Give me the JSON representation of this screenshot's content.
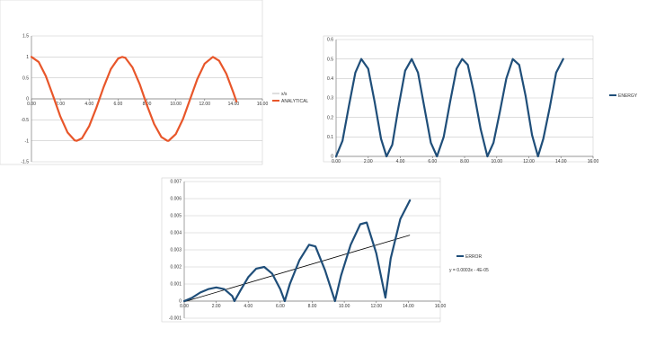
{
  "chart_data": [
    {
      "id": "chart-1",
      "type": "line",
      "title": "",
      "xlabel": "",
      "ylabel": "",
      "xlim": [
        0,
        16
      ],
      "ylim": [
        -1.5,
        1.5
      ],
      "x_ticks": [
        0,
        2,
        4,
        6,
        8,
        10,
        12,
        14,
        16
      ],
      "x_tick_labels": [
        "0.00",
        "2.00",
        "4.00",
        "6.00",
        "8.00",
        "10.00",
        "12.00",
        "14.00",
        "16.00"
      ],
      "y_ticks": [
        -1.5,
        -1,
        -0.5,
        0,
        0.5,
        1,
        1.5
      ],
      "y_tick_labels": [
        "-1.5",
        "-1",
        "-0.5",
        "0",
        "0.5",
        "1",
        "1.5"
      ],
      "grid": "horizontal",
      "legend": "right",
      "series": [
        {
          "name": "x/s",
          "color": "#bdbdbd",
          "x": [
            0,
            0.5,
            1,
            1.5,
            2,
            2.5,
            3,
            3.14,
            3.5,
            4,
            4.5,
            5,
            5.5,
            6,
            6.28,
            6.5,
            7,
            7.5,
            8,
            8.5,
            9,
            9.42,
            9.5,
            10,
            10.5,
            11,
            11.5,
            12,
            12.57,
            13,
            13.5,
            14,
            14.2
          ],
          "y": [
            1,
            0.88,
            0.54,
            0.07,
            -0.42,
            -0.8,
            -0.99,
            -1,
            -0.94,
            -0.65,
            -0.21,
            0.28,
            0.71,
            0.96,
            1,
            0.98,
            0.75,
            0.35,
            -0.15,
            -0.6,
            -0.91,
            -1,
            -1,
            -0.84,
            -0.48,
            0.0,
            0.48,
            0.84,
            1,
            0.91,
            0.6,
            0.14,
            -0.06
          ]
        },
        {
          "name": "ANALYTICAL",
          "color": "#e8562a",
          "x": [
            0,
            0.5,
            1,
            1.5,
            2,
            2.5,
            3,
            3.14,
            3.5,
            4,
            4.5,
            5,
            5.5,
            6,
            6.28,
            6.5,
            7,
            7.5,
            8,
            8.5,
            9,
            9.42,
            9.5,
            10,
            10.5,
            11,
            11.5,
            12,
            12.57,
            13,
            13.5,
            14,
            14.2
          ],
          "y": [
            1,
            0.88,
            0.54,
            0.07,
            -0.42,
            -0.8,
            -0.99,
            -1,
            -0.94,
            -0.65,
            -0.21,
            0.28,
            0.71,
            0.96,
            1,
            0.98,
            0.75,
            0.35,
            -0.15,
            -0.6,
            -0.91,
            -1,
            -1,
            -0.84,
            -0.48,
            0.0,
            0.48,
            0.84,
            1,
            0.91,
            0.6,
            0.14,
            -0.06
          ]
        }
      ]
    },
    {
      "id": "chart-2",
      "type": "line",
      "title": "",
      "xlabel": "",
      "ylabel": "",
      "xlim": [
        0,
        16
      ],
      "ylim": [
        0,
        0.6
      ],
      "x_ticks": [
        0,
        2,
        4,
        6,
        8,
        10,
        12,
        14,
        16
      ],
      "x_tick_labels": [
        "0.00",
        "2.00",
        "4.00",
        "6.00",
        "8.00",
        "10.00",
        "12.00",
        "14.00",
        "16.00"
      ],
      "y_ticks": [
        0,
        0.1,
        0.2,
        0.3,
        0.4,
        0.5,
        0.6
      ],
      "y_tick_labels": [
        "0",
        "0.1",
        "0.2",
        "0.3",
        "0.4",
        "0.5",
        "0.6"
      ],
      "grid": "horizontal",
      "legend": "right",
      "series": [
        {
          "name": "ENERGY",
          "color": "#1f4e79",
          "x": [
            0,
            0.4,
            0.8,
            1.2,
            1.57,
            2.0,
            2.4,
            2.8,
            3.14,
            3.5,
            3.9,
            4.3,
            4.71,
            5.1,
            5.5,
            5.9,
            6.28,
            6.7,
            7.1,
            7.5,
            7.85,
            8.2,
            8.6,
            9.0,
            9.42,
            9.8,
            10.2,
            10.6,
            11.0,
            11.4,
            11.8,
            12.2,
            12.57,
            12.9,
            13.3,
            13.7,
            14.14
          ],
          "y": [
            0,
            0.08,
            0.26,
            0.43,
            0.5,
            0.45,
            0.28,
            0.09,
            0,
            0.06,
            0.26,
            0.44,
            0.5,
            0.43,
            0.25,
            0.07,
            0,
            0.1,
            0.28,
            0.45,
            0.5,
            0.47,
            0.32,
            0.14,
            0,
            0.07,
            0.23,
            0.4,
            0.5,
            0.47,
            0.31,
            0.11,
            0,
            0.09,
            0.25,
            0.43,
            0.5
          ]
        }
      ]
    },
    {
      "id": "chart-3",
      "type": "line",
      "title": "",
      "xlabel": "",
      "ylabel": "",
      "xlim": [
        0,
        16
      ],
      "ylim": [
        -0.001,
        0.007
      ],
      "x_ticks": [
        0,
        2,
        4,
        6,
        8,
        10,
        12,
        14,
        16
      ],
      "x_tick_labels": [
        "0.00",
        "2.00",
        "4.00",
        "6.00",
        "8.00",
        "10.00",
        "12.00",
        "14.00",
        "16.00"
      ],
      "y_ticks": [
        -0.001,
        0,
        0.001,
        0.002,
        0.003,
        0.004,
        0.005,
        0.006,
        0.007
      ],
      "y_tick_labels": [
        "-0.001",
        "0",
        "0.001",
        "0.002",
        "0.003",
        "0.004",
        "0.005",
        "0.006",
        "0.007"
      ],
      "grid": "horizontal",
      "legend": "right",
      "trendline": {
        "x": [
          0,
          14.1
        ],
        "y": [
          -4e-05,
          0.00386
        ],
        "label": "y = 0.0003x - 4E-05",
        "color": "#000000"
      },
      "series": [
        {
          "name": "ERROR",
          "color": "#1f4e79",
          "x": [
            0,
            0.5,
            1,
            1.5,
            2,
            2.5,
            3,
            3.14,
            3.5,
            4,
            4.5,
            5,
            5.5,
            6,
            6.28,
            6.6,
            7.2,
            7.8,
            8.2,
            8.8,
            9.42,
            9.8,
            10.4,
            11.0,
            11.4,
            12.0,
            12.57,
            12.9,
            13.5,
            14.1
          ],
          "y": [
            0,
            0.0002,
            0.0005,
            0.0007,
            0.0008,
            0.0007,
            0.0003,
            0,
            0.0006,
            0.0014,
            0.0019,
            0.002,
            0.0016,
            0.0007,
            0,
            0.001,
            0.0024,
            0.0033,
            0.0032,
            0.0018,
            0,
            0.0015,
            0.0033,
            0.0045,
            0.0046,
            0.0028,
            0.0002,
            0.0025,
            0.0048,
            0.0059
          ]
        }
      ]
    }
  ]
}
